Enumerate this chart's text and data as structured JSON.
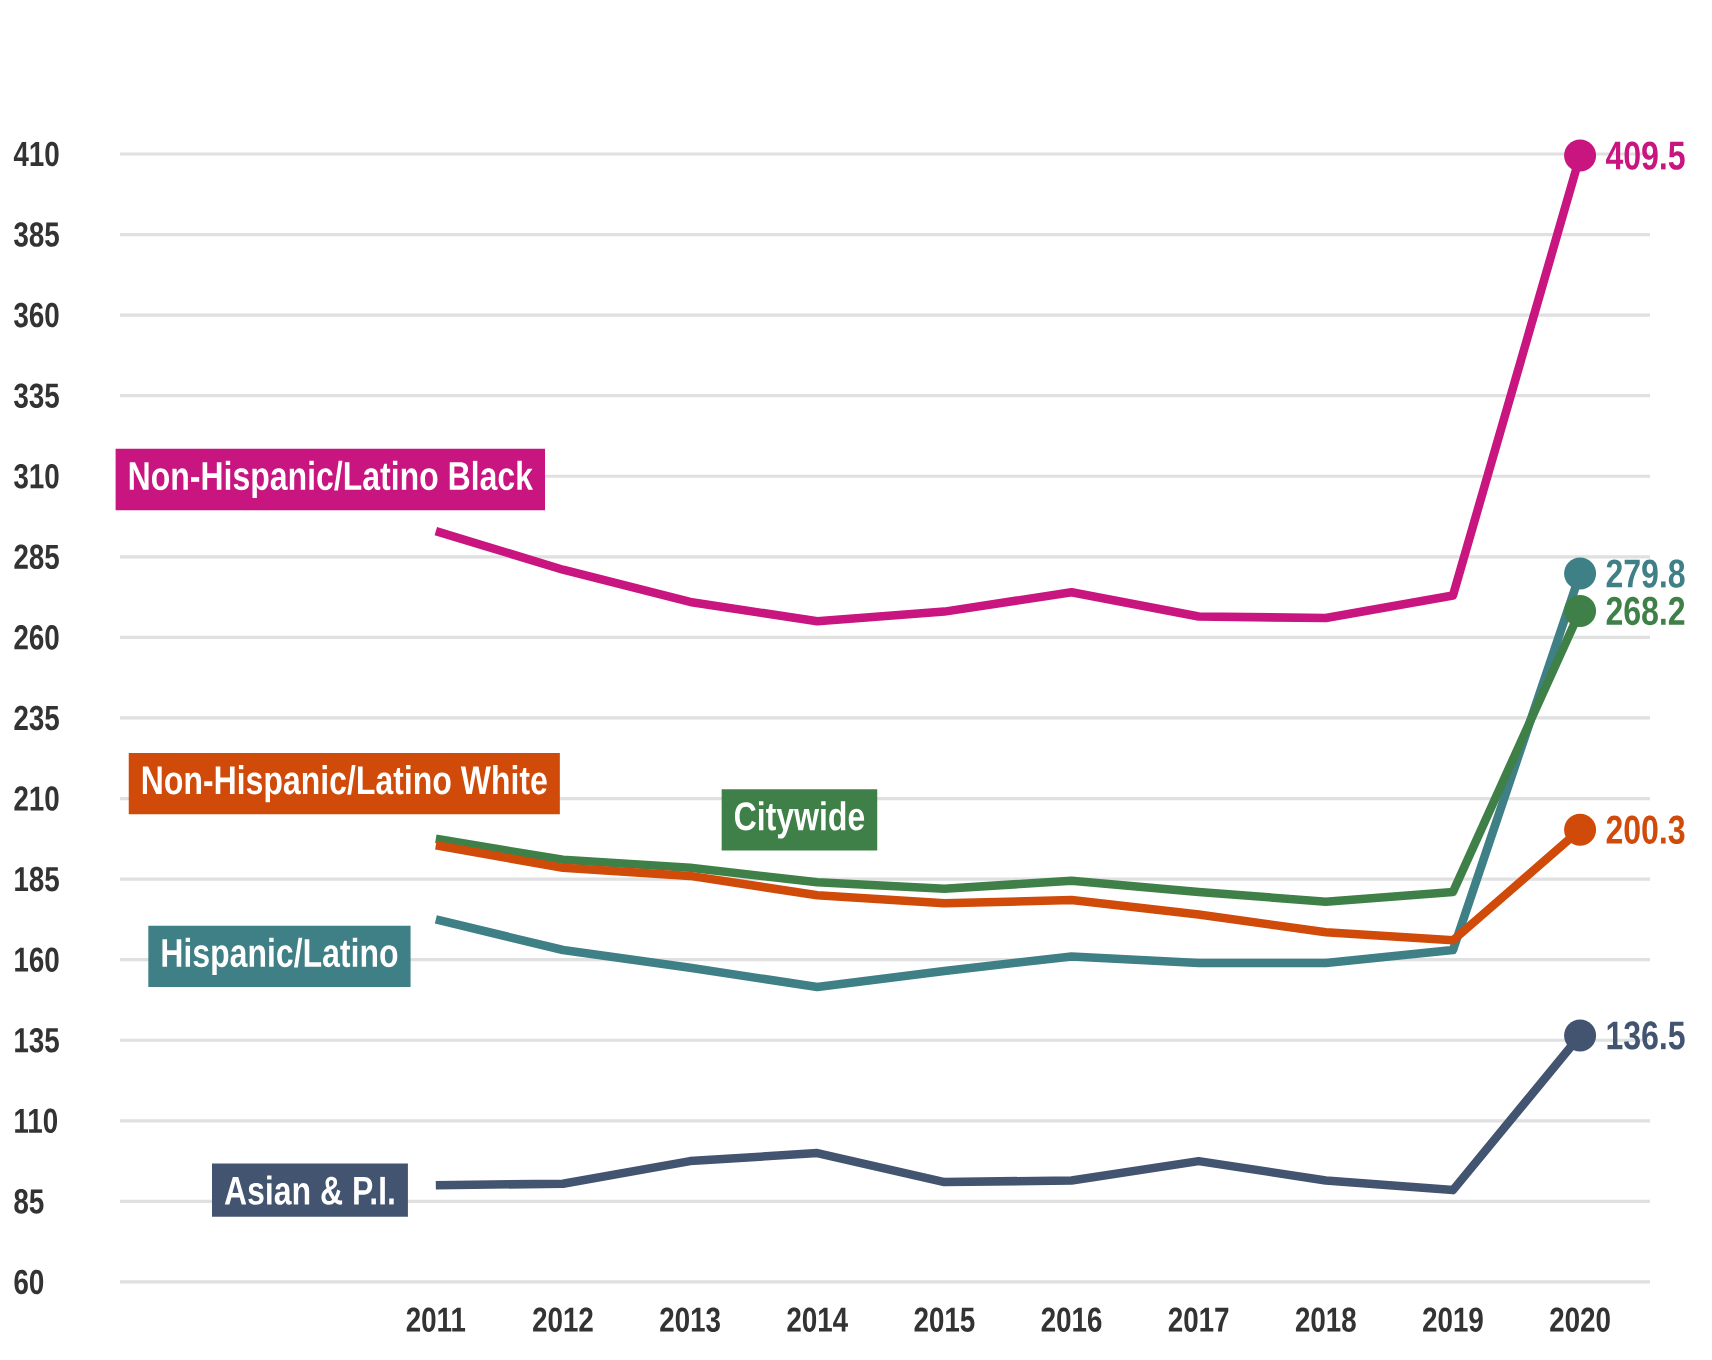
{
  "chart_data": {
    "type": "line",
    "categories": [
      "2011",
      "2012",
      "2013",
      "2014",
      "2015",
      "2016",
      "2017",
      "2018",
      "2019",
      "2020"
    ],
    "series": [
      {
        "name": "Non-Hispanic/Latino Black",
        "color": "#c8157f",
        "values": [
          293,
          281,
          271,
          265,
          268,
          274,
          266.5,
          266,
          273,
          409.5
        ],
        "value_labels": [
          null,
          null,
          null,
          null,
          null,
          null,
          null,
          null,
          null,
          "409.5"
        ]
      },
      {
        "name": "Hispanic/Latino",
        "color": "#3f7f86",
        "values": [
          172.5,
          163,
          157.5,
          151.5,
          156.5,
          161,
          159,
          159,
          163,
          279.8
        ],
        "value_labels": [
          null,
          null,
          null,
          null,
          null,
          null,
          null,
          null,
          null,
          "279.8"
        ]
      },
      {
        "name": "Citywide",
        "color": "#3f8048",
        "values": [
          197.5,
          191,
          188.5,
          184,
          182,
          184.5,
          181,
          178,
          181,
          268.2
        ],
        "value_labels": [
          null,
          null,
          null,
          null,
          null,
          null,
          null,
          null,
          null,
          "268.2"
        ]
      },
      {
        "name": "Non-Hispanic/Latino White",
        "color": "#d04a0a",
        "values": [
          195.5,
          188.5,
          186,
          180,
          177.5,
          178.5,
          174,
          168.5,
          166,
          200.3
        ],
        "value_labels": [
          null,
          null,
          null,
          null,
          null,
          null,
          null,
          null,
          null,
          "200.3"
        ]
      },
      {
        "name": "Asian & P.I.",
        "color": "#435470",
        "values": [
          90,
          90.5,
          97.5,
          100,
          91,
          91.5,
          97.5,
          91.5,
          88.5,
          136.5
        ],
        "value_labels": [
          null,
          null,
          null,
          null,
          null,
          null,
          null,
          null,
          null,
          "136.5"
        ]
      }
    ],
    "ylim": [
      60,
      410
    ],
    "yticks": [
      60,
      85,
      110,
      135,
      160,
      185,
      210,
      235,
      260,
      285,
      310,
      335,
      360,
      385,
      410
    ],
    "grid": "y"
  }
}
